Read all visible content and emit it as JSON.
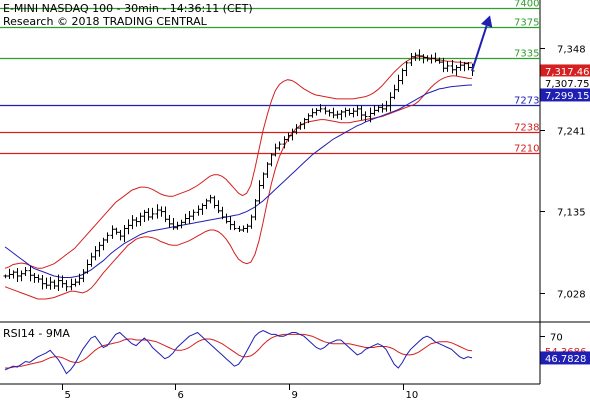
{
  "header": {
    "line1": "E-MINI NASDAQ 100 - 30min - 14:36:11 (CET)",
    "line2": "Research © 2018 TRADING CENTRAL"
  },
  "rsi_panel": {
    "label": "RSI14 - 9MA"
  },
  "chart_data": [
    {
      "type": "candlestick",
      "title": "E-MINI NASDAQ 100 - 30min - 14:36:11 (CET)",
      "ylim": [
        6990,
        7410
      ],
      "y_ticks": [
        7028,
        7135,
        7241,
        7348
      ],
      "x_ticks": [
        "5",
        "6",
        "9",
        "10"
      ],
      "grid": false,
      "levels": [
        {
          "label": "7400",
          "value": 7400,
          "color": "#2e9e2e"
        },
        {
          "label": "7375",
          "value": 7375,
          "color": "#2e9e2e"
        },
        {
          "label": "7335",
          "value": 7335,
          "color": "#2e9e2e"
        },
        {
          "label": "7273",
          "value": 7273,
          "color": "#1f1fb4"
        },
        {
          "label": "7238",
          "value": 7238,
          "color": "#d42020"
        },
        {
          "label": "7210",
          "value": 7210,
          "color": "#d42020"
        }
      ],
      "price_tags": [
        {
          "label": "7,317.46",
          "value": 7317.46,
          "bg": "#d42020",
          "fg": "#ffffff"
        },
        {
          "label": "7,307.75",
          "value": 7307.75,
          "bg": "#ffffff",
          "fg": "#000000"
        },
        {
          "label": "7,299.15",
          "value": 7299.15,
          "bg": "#1f1fb4",
          "fg": "#ffffff"
        }
      ],
      "close": [
        7050,
        7052,
        7055,
        7050,
        7053,
        7057,
        7051,
        7048,
        7046,
        7040,
        7038,
        7042,
        7037,
        7044,
        7040,
        7036,
        7039,
        7042,
        7047,
        7055,
        7065,
        7075,
        7083,
        7090,
        7097,
        7103,
        7111,
        7107,
        7102,
        7112,
        7116,
        7123,
        7121,
        7128,
        7133,
        7127,
        7131,
        7136,
        7134,
        7124,
        7118,
        7113,
        7116,
        7120,
        7125,
        7128,
        7133,
        7137,
        7142,
        7148,
        7152,
        7142,
        7135,
        7127,
        7121,
        7117,
        7112,
        7110,
        7112,
        7115,
        7127,
        7148,
        7168,
        7183,
        7196,
        7208,
        7217,
        7222,
        7228,
        7233,
        7238,
        7243,
        7248,
        7254,
        7259,
        7263,
        7266,
        7268,
        7265,
        7263,
        7260,
        7261,
        7264,
        7266,
        7262,
        7265,
        7268,
        7260,
        7258,
        7262,
        7266,
        7270,
        7268,
        7272,
        7283,
        7293,
        7305,
        7318,
        7328,
        7336,
        7338,
        7337,
        7335,
        7333,
        7334,
        7331,
        7329,
        7321,
        7324,
        7319,
        7322,
        7325,
        7327,
        7322,
        7317.46
      ],
      "series": [
        {
          "name": "",
          "type": "ma",
          "color": "#1f1fb4",
          "values": [
            7088,
            7084,
            7080,
            7076,
            7072,
            7068,
            7064,
            7060,
            7058,
            7056,
            7054,
            7052,
            7050,
            7049,
            7048,
            7048,
            7048,
            7049,
            7050,
            7052,
            7055,
            7058,
            7062,
            7066,
            7070,
            7075,
            7080,
            7084,
            7088,
            7092,
            7095,
            7098,
            7101,
            7104,
            7106,
            7108,
            7109,
            7110,
            7111,
            7112,
            7113,
            7114,
            7115,
            7116,
            7117,
            7118,
            7119,
            7120,
            7121,
            7122,
            7123,
            7124,
            7125,
            7126,
            7127,
            7128,
            7129,
            7130,
            7132,
            7134,
            7137,
            7140,
            7144,
            7148,
            7153,
            7158,
            7163,
            7168,
            7173,
            7178,
            7183,
            7188,
            7193,
            7198,
            7203,
            7208,
            7212,
            7216,
            7220,
            7224,
            7228,
            7231,
            7234,
            7237,
            7240,
            7243,
            7246,
            7248,
            7251,
            7253,
            7255,
            7257,
            7259,
            7261,
            7263,
            7265,
            7267,
            7270,
            7273,
            7276,
            7279,
            7282,
            7285,
            7288,
            7290,
            7292,
            7294,
            7295,
            7296,
            7297,
            7297.5,
            7298,
            7298.5,
            7299,
            7299.15
          ]
        }
      ],
      "bollinger": {
        "color": "#d42020",
        "upper": [
          7060,
          7062,
          7065,
          7066,
          7067,
          7066,
          7064,
          7062,
          7060,
          7060,
          7062,
          7064,
          7066,
          7070,
          7074,
          7078,
          7082,
          7086,
          7092,
          7098,
          7104,
          7110,
          7116,
          7122,
          7128,
          7134,
          7140,
          7146,
          7150,
          7154,
          7158,
          7162,
          7164,
          7166,
          7166,
          7165,
          7163,
          7160,
          7157,
          7155,
          7154,
          7154,
          7156,
          7158,
          7160,
          7162,
          7165,
          7168,
          7172,
          7176,
          7180,
          7182,
          7182,
          7180,
          7176,
          7170,
          7164,
          7158,
          7155,
          7158,
          7168,
          7190,
          7215,
          7240,
          7260,
          7278,
          7292,
          7300,
          7304,
          7306,
          7305,
          7302,
          7298,
          7294,
          7291,
          7288,
          7286,
          7285,
          7284,
          7283,
          7282,
          7281,
          7281,
          7281,
          7281,
          7281,
          7282,
          7283,
          7284,
          7286,
          7289,
          7293,
          7298,
          7304,
          7310,
          7316,
          7321,
          7326,
          7330,
          7333,
          7335,
          7336,
          7336,
          7335,
          7334,
          7333,
          7332,
          7331,
          7330,
          7330,
          7329,
          7329,
          7328,
          7328,
          7328
        ],
        "lower": [
          7036,
          7034,
          7032,
          7030,
          7028,
          7026,
          7024,
          7022,
          7020,
          7020,
          7020,
          7021,
          7022,
          7024,
          7026,
          7028,
          7030,
          7030,
          7029,
          7028,
          7030,
          7034,
          7040,
          7047,
          7054,
          7060,
          7066,
          7072,
          7078,
          7084,
          7090,
          7094,
          7098,
          7100,
          7101,
          7101,
          7100,
          7098,
          7095,
          7093,
          7091,
          7090,
          7090,
          7092,
          7094,
          7096,
          7099,
          7102,
          7105,
          7108,
          7110,
          7110,
          7108,
          7104,
          7098,
          7090,
          7080,
          7072,
          7068,
          7066,
          7068,
          7078,
          7096,
          7120,
          7146,
          7170,
          7190,
          7206,
          7218,
          7228,
          7236,
          7242,
          7246,
          7249,
          7251,
          7252,
          7253,
          7254,
          7254,
          7253,
          7252,
          7251,
          7250,
          7250,
          7250,
          7251,
          7252,
          7253,
          7254,
          7255,
          7256,
          7257,
          7258,
          7260,
          7262,
          7264,
          7266,
          7268,
          7270,
          7272,
          7274,
          7278,
          7284,
          7290,
          7296,
          7301,
          7305,
          7308,
          7310,
          7311,
          7311,
          7310,
          7309,
          7308,
          7307.75
        ]
      },
      "forecast_arrow": {
        "from_value": 7317.46,
        "to_value": 7390,
        "color": "#1f1fb4"
      }
    },
    {
      "type": "line",
      "title": "RSI14 - 9MA",
      "ylim": [
        20,
        82
      ],
      "y_ticks": [
        70
      ],
      "tags": [
        {
          "label": "54.3686",
          "value": 54.3686,
          "bg": "#ffffff",
          "fg": "#d42020"
        },
        {
          "label": "46.7828",
          "value": 46.7828,
          "bg": "#1f1fb4",
          "fg": "#ffffff"
        }
      ],
      "series": [
        {
          "name": "",
          "color": "#1f1fb4",
          "values": [
            34,
            36,
            38,
            37,
            40,
            43,
            42,
            45,
            48,
            50,
            52,
            55,
            50,
            45,
            38,
            30,
            34,
            40,
            48,
            56,
            62,
            68,
            70,
            64,
            58,
            60,
            66,
            72,
            74,
            70,
            66,
            62,
            60,
            64,
            68,
            64,
            58,
            54,
            50,
            46,
            48,
            52,
            58,
            62,
            66,
            70,
            72,
            74,
            70,
            66,
            62,
            58,
            54,
            50,
            46,
            42,
            38,
            40,
            46,
            54,
            62,
            70,
            74,
            76,
            74,
            72,
            72,
            70,
            70,
            72,
            74,
            74,
            72,
            70,
            66,
            62,
            58,
            56,
            58,
            62,
            64,
            66,
            66,
            62,
            58,
            54,
            50,
            52,
            56,
            58,
            60,
            62,
            60,
            56,
            48,
            40,
            36,
            42,
            50,
            56,
            60,
            64,
            68,
            70,
            68,
            64,
            62,
            60,
            58,
            56,
            52,
            48,
            46,
            48,
            46.7828
          ]
        },
        {
          "name": "",
          "color": "#d42020",
          "values": [
            36,
            36,
            37,
            38,
            38,
            39,
            40,
            41,
            42,
            43,
            45,
            47,
            48,
            48,
            47,
            45,
            43,
            42,
            42,
            44,
            47,
            51,
            55,
            58,
            60,
            61,
            62,
            63,
            64,
            66,
            67,
            67,
            66,
            66,
            66,
            66,
            65,
            64,
            62,
            60,
            58,
            56,
            55,
            55,
            56,
            58,
            61,
            64,
            66,
            67,
            67,
            66,
            64,
            62,
            59,
            56,
            53,
            50,
            48,
            48,
            49,
            52,
            56,
            61,
            65,
            68,
            70,
            71,
            72,
            72,
            72,
            72,
            72,
            72,
            71,
            70,
            68,
            66,
            64,
            63,
            62,
            62,
            62,
            62,
            62,
            61,
            60,
            59,
            58,
            58,
            58,
            59,
            59,
            59,
            58,
            56,
            53,
            51,
            50,
            50,
            51,
            53,
            56,
            59,
            62,
            63,
            64,
            64,
            64,
            63,
            61,
            59,
            57,
            55,
            54.3686
          ]
        }
      ]
    }
  ]
}
